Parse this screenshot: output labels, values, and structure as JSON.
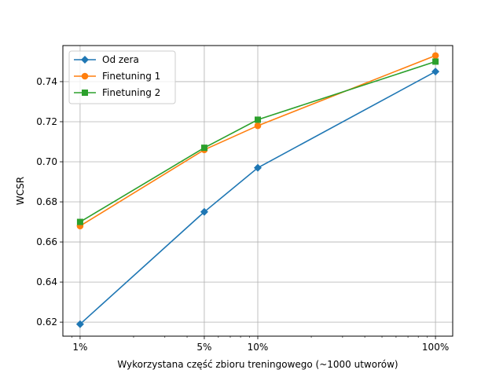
{
  "chart_data": {
    "type": "line",
    "xscale": "log",
    "xlabel": "Wykorzystana część zbioru treningowego (~1000 utworów)",
    "ylabel": "WCSR",
    "x": [
      1,
      5,
      10,
      100
    ],
    "x_tick_labels": [
      "1%",
      "5%",
      "10%",
      "100%"
    ],
    "xlim": [
      0.8,
      125
    ],
    "ylim": [
      0.613,
      0.758
    ],
    "y_ticks": [
      0.62,
      0.64,
      0.66,
      0.68,
      0.7,
      0.72,
      0.74
    ],
    "y_tick_labels": [
      "0.62",
      "0.64",
      "0.66",
      "0.68",
      "0.70",
      "0.72",
      "0.74"
    ],
    "grid": true,
    "legend_position": "upper-left",
    "series": [
      {
        "name": "Od zera",
        "values": [
          0.619,
          0.675,
          0.697,
          0.745
        ],
        "color": "#1f77b4",
        "marker": "diamond"
      },
      {
        "name": "Finetuning 1",
        "values": [
          0.668,
          0.706,
          0.718,
          0.753
        ],
        "color": "#ff7f0e",
        "marker": "circle"
      },
      {
        "name": "Finetuning 2",
        "values": [
          0.67,
          0.707,
          0.721,
          0.75
        ],
        "color": "#2ca02c",
        "marker": "square"
      }
    ]
  }
}
